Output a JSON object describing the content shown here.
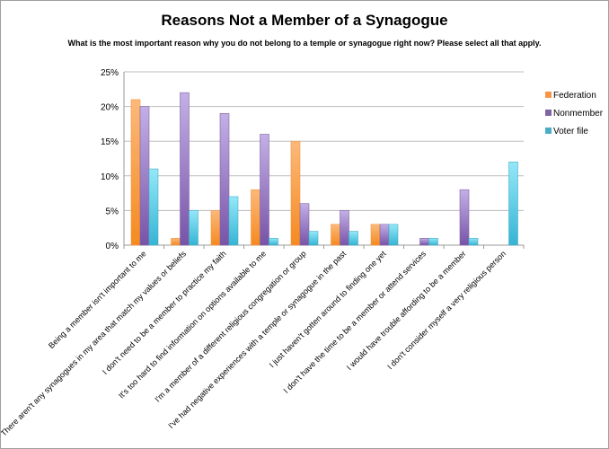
{
  "chart_data": {
    "type": "bar",
    "title": "Reasons Not a Member of a Synagogue",
    "subtitle": "What is the most important reason why you do not belong to a temple or synagogue right now? Please select all that apply.",
    "xlabel": "",
    "ylabel": "",
    "ylim": [
      0,
      25
    ],
    "yticks": [
      "0%",
      "5%",
      "10%",
      "15%",
      "20%",
      "25%"
    ],
    "grid": true,
    "legend_position": "right",
    "categories": [
      "Being a member isn't important to me",
      "There aren't any synagogues in my area that match my values or beliefs",
      "I don't need to be a member to practice my faith",
      "It's too hard to find information on options available to me",
      "I'm a member of a different religious congregation or group",
      "I've had negative experiences with a temple or synagogue in the past",
      "I just haven't gotten around to finding one yet",
      "I don't have the time to be a member or attend services",
      "I would have trouble affording to be a member",
      "I don't consider myself a very religious person"
    ],
    "series": [
      {
        "name": "Federation",
        "color": "#f79646",
        "values": [
          21,
          1,
          5,
          8,
          15,
          3,
          3,
          0,
          0,
          0
        ]
      },
      {
        "name": "Nonmember",
        "color": "#8064a2",
        "values": [
          20,
          22,
          19,
          16,
          6,
          5,
          3,
          1,
          8,
          0
        ]
      },
      {
        "name": "Voter file",
        "color": "#4bacc6",
        "values": [
          11,
          5,
          7,
          1,
          2,
          2,
          3,
          1,
          1,
          12
        ]
      }
    ]
  }
}
